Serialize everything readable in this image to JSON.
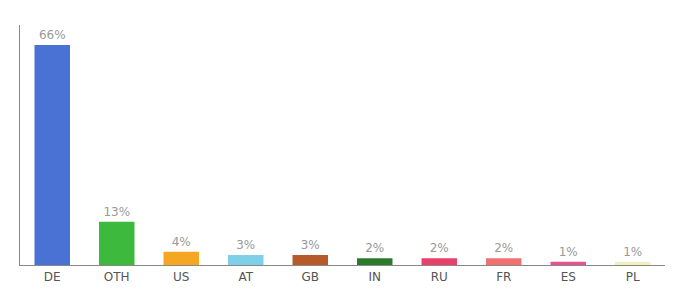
{
  "chart_data": {
    "type": "bar",
    "categories": [
      "DE",
      "OTH",
      "US",
      "AT",
      "GB",
      "IN",
      "RU",
      "FR",
      "ES",
      "PL"
    ],
    "values": [
      66,
      13,
      4,
      3,
      3,
      2,
      2,
      2,
      1,
      1
    ],
    "value_labels": [
      "66%",
      "13%",
      "4%",
      "3%",
      "3%",
      "2%",
      "2%",
      "2%",
      "1%",
      "1%"
    ],
    "data_labels": true,
    "colors": [
      "#4a72d4",
      "#3dba3d",
      "#f5a623",
      "#7ecfe8",
      "#b55a28",
      "#2d7a2d",
      "#e8406a",
      "#f07070",
      "#e85090",
      "#f0f0c0"
    ],
    "ylim": [
      0,
      72
    ],
    "grid": false,
    "tick_labels": "x"
  }
}
